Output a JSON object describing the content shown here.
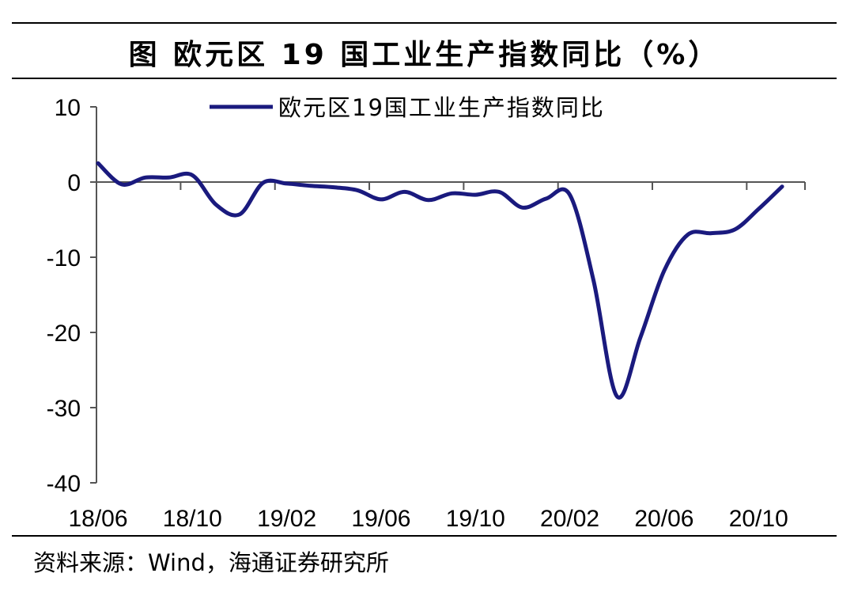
{
  "header": {
    "title": "图 欧元区 19 国工业生产指数同比（%）"
  },
  "footer": {
    "source": "资料来源：Wind，海通证券研究所"
  },
  "chart_data": {
    "type": "line",
    "title": "图 欧元区 19 国工业生产指数同比（%）",
    "ylim": [
      -40,
      10
    ],
    "y_ticks": [
      "10",
      "0",
      "-10",
      "-20",
      "-30",
      "-40"
    ],
    "x_tick_labels": [
      "18/06",
      "18/10",
      "19/02",
      "19/06",
      "19/10",
      "20/02",
      "20/06",
      "20/10"
    ],
    "grid": false,
    "legend": "top-center",
    "color": "#1a1a7e",
    "x": [
      "18/06",
      "18/07",
      "18/08",
      "18/09",
      "18/10",
      "18/11",
      "18/12",
      "19/01",
      "19/02",
      "19/03",
      "19/04",
      "19/05",
      "19/06",
      "19/07",
      "19/08",
      "19/09",
      "19/10",
      "19/11",
      "19/12",
      "20/01",
      "20/02",
      "20/03",
      "20/04",
      "20/05",
      "20/06",
      "20/07",
      "20/08",
      "20/09",
      "20/10",
      "20/11"
    ],
    "series": [
      {
        "name": "欧元区19国工业生产指数同比",
        "values": [
          2.5,
          -0.3,
          0.6,
          0.6,
          0.9,
          -3.0,
          -4.3,
          -0.1,
          -0.2,
          -0.5,
          -0.7,
          -1.1,
          -2.3,
          -1.3,
          -2.4,
          -1.5,
          -1.7,
          -1.3,
          -3.4,
          -2.2,
          -1.7,
          -13.0,
          -28.5,
          -20.6,
          -11.8,
          -7.0,
          -6.8,
          -6.3,
          -3.6,
          -0.6
        ]
      }
    ]
  }
}
